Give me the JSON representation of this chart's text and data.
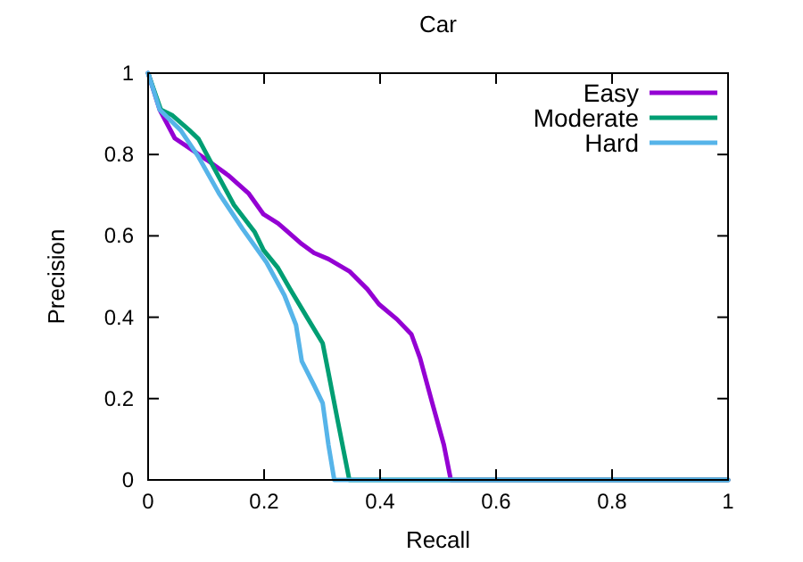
{
  "chart_data": {
    "type": "line",
    "title": "Car",
    "xlabel": "Recall",
    "ylabel": "Precision",
    "xlim": [
      0,
      1
    ],
    "ylim": [
      0,
      1
    ],
    "xticks": [
      0,
      0.2,
      0.4,
      0.6,
      0.8,
      1
    ],
    "yticks": [
      0,
      0.2,
      0.4,
      0.6,
      0.8,
      1
    ],
    "grid": false,
    "legend": "top right",
    "marker": "none",
    "line_style": "solid",
    "series": [
      {
        "name": "Easy",
        "color": "#9400d3",
        "x": [
          0,
          0.02,
          0.046,
          0.071,
          0.102,
          0.138,
          0.173,
          0.199,
          0.224,
          0.265,
          0.286,
          0.311,
          0.347,
          0.378,
          0.398,
          0.429,
          0.454,
          0.469,
          0.49,
          0.51,
          0.522,
          1
        ],
        "values": [
          1,
          0.91,
          0.84,
          0.816,
          0.786,
          0.749,
          0.705,
          0.653,
          0.631,
          0.58,
          0.558,
          0.543,
          0.513,
          0.469,
          0.432,
          0.395,
          0.358,
          0.299,
          0.189,
          0.086,
          0,
          0
        ]
      },
      {
        "name": "Moderate",
        "color": "#009e73",
        "x": [
          0,
          0.022,
          0.041,
          0.071,
          0.087,
          0.112,
          0.148,
          0.184,
          0.199,
          0.224,
          0.245,
          0.276,
          0.301,
          0.311,
          0.327,
          0.347,
          1
        ],
        "values": [
          1,
          0.91,
          0.897,
          0.86,
          0.838,
          0.771,
          0.676,
          0.609,
          0.565,
          0.521,
          0.469,
          0.395,
          0.336,
          0.263,
          0.145,
          0,
          0
        ]
      },
      {
        "name": "Hard",
        "color": "#56b4e9",
        "x": [
          0,
          0.02,
          0.056,
          0.087,
          0.122,
          0.163,
          0.204,
          0.235,
          0.255,
          0.265,
          0.286,
          0.301,
          0.311,
          0.321,
          1
        ],
        "values": [
          1,
          0.91,
          0.86,
          0.794,
          0.705,
          0.617,
          0.535,
          0.454,
          0.381,
          0.292,
          0.233,
          0.189,
          0.086,
          0,
          0
        ]
      }
    ]
  }
}
